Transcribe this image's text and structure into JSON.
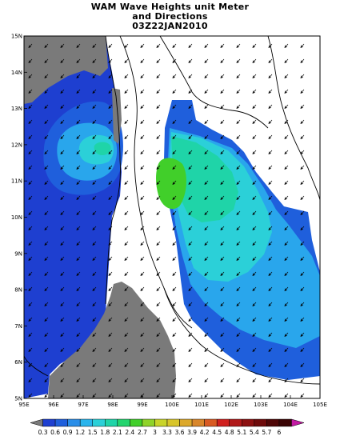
{
  "title": {
    "line1": "WAM Wave Heights unit Meter",
    "line2": "and Directions",
    "line3": "03Z22JAN2010"
  },
  "axes": {
    "lat_labels": [
      "15N",
      "14N",
      "13N",
      "12N",
      "11N",
      "10N",
      "9N",
      "8N",
      "7N",
      "6N",
      "5N"
    ],
    "lon_labels": [
      "95E",
      "96E",
      "97E",
      "98E",
      "99E",
      "100E",
      "101E",
      "102E",
      "103E",
      "104E",
      "105E"
    ]
  },
  "colorbar": {
    "labels": [
      "0.3",
      "0.6",
      "0.9",
      "1.2",
      "1.5",
      "1.8",
      "2.1",
      "2.4",
      "2.7",
      "3",
      "3.3",
      "3.6",
      "3.9",
      "4.2",
      "4.5",
      "4.8",
      "5.1",
      "5.4",
      "5.7",
      "6"
    ],
    "colors": [
      "#7a7a7a",
      "#1e3fd0",
      "#1f5fdc",
      "#2a8ee8",
      "#29b4ec",
      "#2bd0d8",
      "#1fd4a8",
      "#23d46e",
      "#41cf2a",
      "#8fd32a",
      "#c9d42a",
      "#d8c52a",
      "#dca82a",
      "#d8862a",
      "#d85a22",
      "#d0201e",
      "#b01818",
      "#8c1010",
      "#6e0a0a",
      "#4e0606",
      "#3a0404",
      "#c21aa2"
    ]
  },
  "legend_colors": {
    "land": "#7a7a7a",
    "deep_blue": "#1e3fd0",
    "blue": "#1f5fdc",
    "light_blue": "#29a6ec",
    "cyan": "#2bd0d8",
    "teal": "#1fd4a8",
    "green": "#23d46e",
    "bright_green": "#41cf2a"
  }
}
